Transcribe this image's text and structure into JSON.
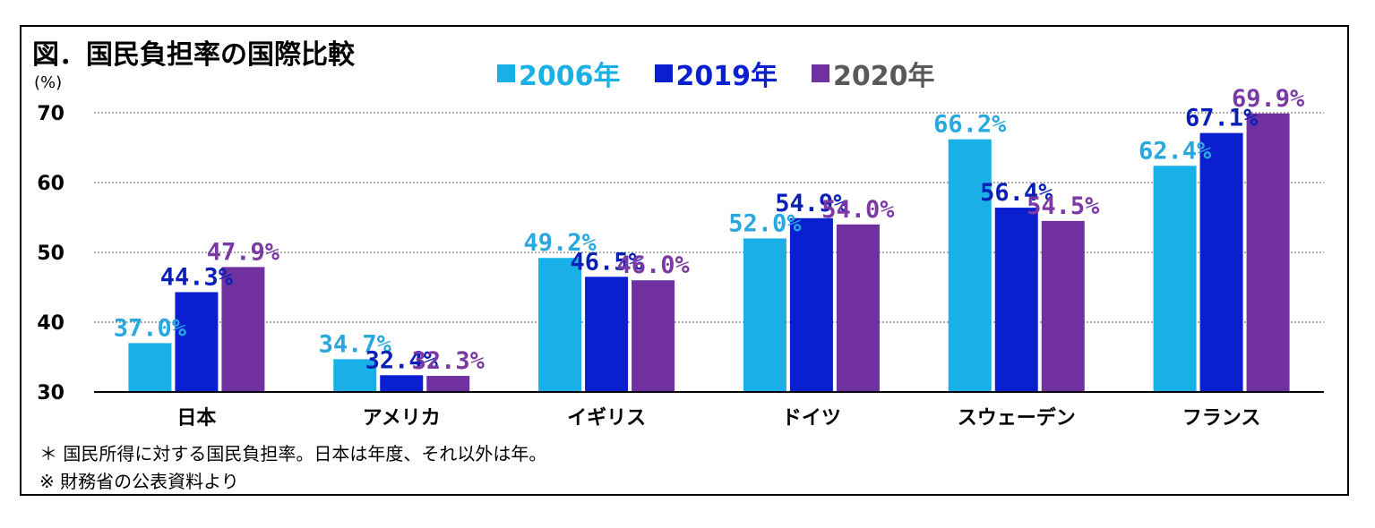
{
  "title": "図．国民負担率の国際比較",
  "unit_label": "(%)",
  "notes": [
    "＊ 国民所得に対する国民負担率。日本は年度、それ以外は年。",
    "※ 財務省の公表資料より"
  ],
  "colors": {
    "2006": "#18b0e6",
    "2019": "#0a1fd0",
    "2020": "#7030a0",
    "label_2020": "#7b3aa3",
    "label_2006": "#29a8e0",
    "label_2019": "#0a1fb8"
  },
  "chart_data": {
    "type": "bar",
    "title": "図．国民負担率の国際比較",
    "ylabel": "(%)",
    "ylim": [
      30,
      70
    ],
    "yticks": [
      30,
      40,
      50,
      60,
      70
    ],
    "grid": true,
    "legend_position": "top-center",
    "categories": [
      "日本",
      "アメリカ",
      "イギリス",
      "ドイツ",
      "スウェーデン",
      "フランス"
    ],
    "series": [
      {
        "name": "2006年",
        "color_key": "2006",
        "values": [
          37.0,
          34.7,
          49.2,
          52.0,
          66.2,
          62.4
        ],
        "labels": [
          "37.0%",
          "34.7%",
          "49.2%",
          "52.0%",
          "66.2%",
          "62.4%"
        ]
      },
      {
        "name": "2019年",
        "color_key": "2019",
        "values": [
          44.3,
          32.4,
          46.5,
          54.9,
          56.4,
          67.1
        ],
        "labels": [
          "44.3%",
          "32.4%",
          "46.5%",
          "54.9%",
          "56.4%",
          "67.1%"
        ]
      },
      {
        "name": "2020年",
        "color_key": "2020",
        "values": [
          47.9,
          32.3,
          46.0,
          54.0,
          54.5,
          69.9
        ],
        "labels": [
          "47.9%",
          "32.3%",
          "46.0%",
          "54.0%",
          "54.5%",
          "69.9%"
        ]
      }
    ]
  }
}
